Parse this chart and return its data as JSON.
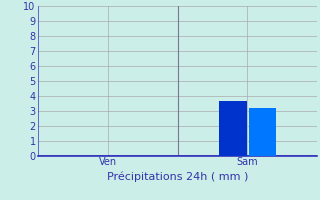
{
  "xlabel": "Précipitations 24h ( mm )",
  "categories": [
    "Ven",
    "Sam"
  ],
  "bar1_value": 3.7,
  "bar2_value": 3.2,
  "bar1_color": "#0033cc",
  "bar2_color": "#0077ff",
  "ylim": [
    0,
    10
  ],
  "yticks": [
    0,
    1,
    2,
    3,
    4,
    5,
    6,
    7,
    8,
    9,
    10
  ],
  "bg_color": "#cceee8",
  "grid_color": "#aaaaaa",
  "axis_color": "#3333bb",
  "tick_label_color": "#3333aa",
  "xlabel_color": "#3333aa",
  "bar_width": 0.4,
  "ven_x": 1,
  "sam_x": 3,
  "separator_x": 2.0,
  "xlim": [
    0,
    4
  ],
  "ven_tick": 1,
  "sam_tick": 3
}
